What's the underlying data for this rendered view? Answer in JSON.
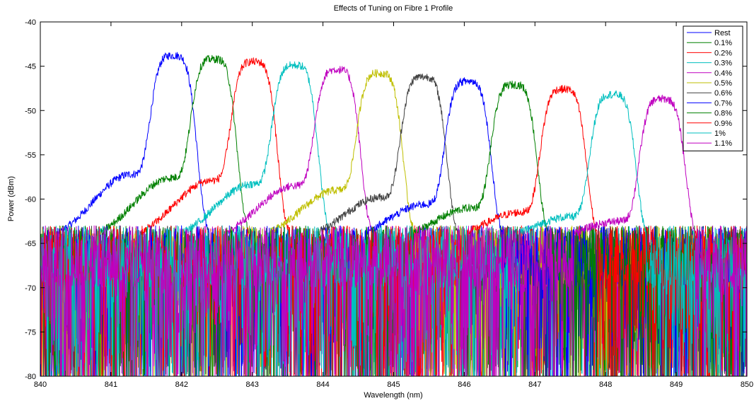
{
  "chart_data": {
    "type": "line",
    "title": "Effects of Tuning on Fibre 1 Profile",
    "xlabel": "Wavelength (nm)",
    "ylabel": "Power (dBm)",
    "xlim": [
      840,
      850
    ],
    "ylim": [
      -80,
      -40
    ],
    "xticks": [
      "840",
      "841",
      "842",
      "843",
      "844",
      "845",
      "846",
      "847",
      "848",
      "849",
      "850"
    ],
    "yticks": [
      "-40",
      "-45",
      "-50",
      "-55",
      "-60",
      "-65",
      "-70",
      "-75",
      "-80"
    ],
    "grid": false,
    "legend_position": "top-right",
    "noise_floor_dbm": -65,
    "series": [
      {
        "name": "Rest",
        "color": "#0000ff",
        "peak_x": 841.88,
        "peak_y": -43.8,
        "shoulder_y": -57.2
      },
      {
        "name": "0.1%",
        "color": "#008000",
        "peak_x": 842.45,
        "peak_y": -44.2,
        "shoulder_y": -57.6
      },
      {
        "name": "0.2%",
        "color": "#ff0000",
        "peak_x": 843.02,
        "peak_y": -44.5,
        "shoulder_y": -57.9
      },
      {
        "name": "0.3%",
        "color": "#00bfbf",
        "peak_x": 843.6,
        "peak_y": -44.9,
        "shoulder_y": -58.3
      },
      {
        "name": "0.4%",
        "color": "#bf00bf",
        "peak_x": 844.2,
        "peak_y": -45.4,
        "shoulder_y": -58.5
      },
      {
        "name": "0.5%",
        "color": "#bfbf00",
        "peak_x": 844.8,
        "peak_y": -45.8,
        "shoulder_y": -59.0
      },
      {
        "name": "0.6%",
        "color": "#404040",
        "peak_x": 845.42,
        "peak_y": -46.2,
        "shoulder_y": -59.8
      },
      {
        "name": "0.7%",
        "color": "#0000ff",
        "peak_x": 846.05,
        "peak_y": -46.7,
        "shoulder_y": -60.6
      },
      {
        "name": "0.8%",
        "color": "#008000",
        "peak_x": 846.7,
        "peak_y": -47.1,
        "shoulder_y": -61.0
      },
      {
        "name": "0.9%",
        "color": "#ff0000",
        "peak_x": 847.4,
        "peak_y": -47.6,
        "shoulder_y": -61.5
      },
      {
        "name": "1%",
        "color": "#00bfbf",
        "peak_x": 848.1,
        "peak_y": -48.2,
        "shoulder_y": -62.0
      },
      {
        "name": "1.1%",
        "color": "#bf00bf",
        "peak_x": 848.8,
        "peak_y": -48.7,
        "shoulder_y": -62.5
      }
    ]
  }
}
